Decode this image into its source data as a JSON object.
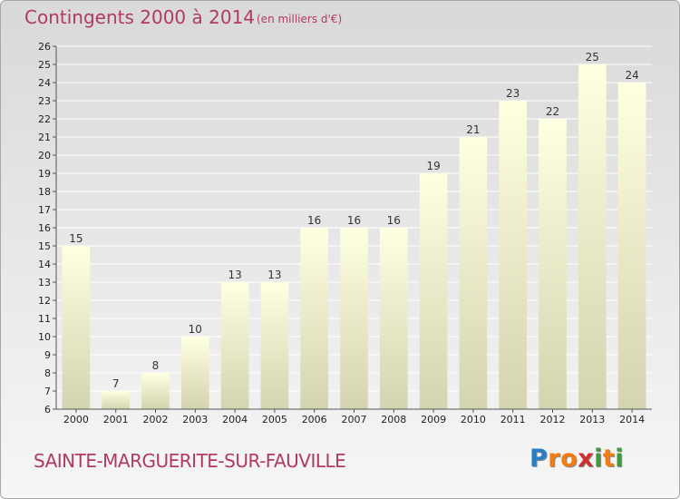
{
  "chart": {
    "title": "Contingents 2000 à 2014",
    "subtitle": "(en milliers d'€)",
    "commune": "SAINTE-MARGUERITE-SUR-FAUVILLE"
  },
  "logo": {
    "letters": [
      "P",
      "r",
      "o",
      "x",
      "i",
      "t",
      "i"
    ],
    "colors": [
      "#2a7ec6",
      "#f07c14",
      "#f07c14",
      "#cf2f2f",
      "#3d9a3d",
      "#f07c14",
      "#3d9a3d"
    ]
  },
  "colors": {
    "title": "#b03a62",
    "bar_top": "#ffffe2",
    "bar_bottom": "#d4d4b0",
    "grid": "#ffffff"
  },
  "chart_data": {
    "type": "bar",
    "categories": [
      "2000",
      "2001",
      "2002",
      "2003",
      "2004",
      "2005",
      "2006",
      "2007",
      "2008",
      "2009",
      "2010",
      "2011",
      "2012",
      "2013",
      "2014"
    ],
    "values": [
      15,
      7,
      8,
      10,
      13,
      13,
      16,
      16,
      16,
      19,
      21,
      23,
      22,
      25,
      24
    ],
    "y_ticks": [
      6,
      7,
      8,
      9,
      10,
      11,
      12,
      13,
      14,
      15,
      16,
      17,
      18,
      19,
      20,
      21,
      22,
      23,
      24,
      25,
      26
    ],
    "ylim": [
      6,
      26
    ],
    "grid": true,
    "show_value_labels": true
  }
}
